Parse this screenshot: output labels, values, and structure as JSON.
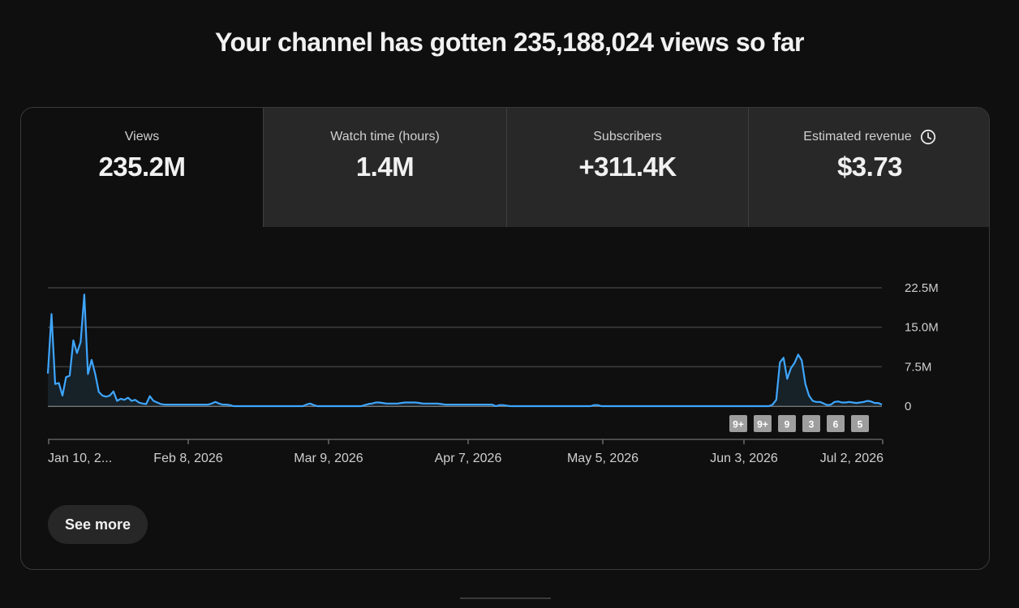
{
  "headline": "Your channel has gotten 235,188,024 views so far",
  "tabs": [
    {
      "label": "Views",
      "value": "235.2M"
    },
    {
      "label": "Watch time (hours)",
      "value": "1.4M"
    },
    {
      "label": "Subscribers",
      "value": "+311.4K"
    },
    {
      "label": "Estimated revenue",
      "value": "$3.73",
      "icon": "clock-icon"
    }
  ],
  "see_more_label": "See more",
  "colors": {
    "line": "#3ea6ff",
    "background": "#0f0f0f",
    "tab_inactive": "#282828",
    "grid": "#3f3f3f"
  },
  "chart_data": {
    "type": "line",
    "series": [
      {
        "values": [
          6.2,
          17.5,
          4.2,
          4.4,
          2,
          5.5,
          5.8,
          12.5,
          10.1,
          12.2,
          21.2,
          6.1,
          8.8,
          6.1,
          2.7,
          2,
          1.8,
          2,
          2.8,
          1,
          1.4,
          1.2,
          1.6,
          1,
          1.2,
          0.7,
          0.5,
          0.4,
          1.9,
          1,
          0.7,
          0.4,
          0.3,
          0.3,
          0.3,
          0.3,
          0.3,
          0.3,
          0.3,
          0.3,
          0.3,
          0.3,
          0.3,
          0.3,
          0.3,
          0.5,
          0.8,
          0.5,
          0.3,
          0.3,
          0.2,
          0,
          0,
          0,
          0,
          0,
          0,
          0,
          0,
          0,
          0,
          0,
          0,
          0,
          0,
          0,
          0,
          0,
          0,
          0,
          0,
          0.3,
          0.5,
          0.2,
          0,
          0,
          0,
          0,
          0,
          0,
          0,
          0,
          0,
          0,
          0,
          0,
          0,
          0.2,
          0.4,
          0.5,
          0.7,
          0.7,
          0.6,
          0.5,
          0.5,
          0.5,
          0.5,
          0.6,
          0.7,
          0.7,
          0.7,
          0.7,
          0.6,
          0.5,
          0.5,
          0.5,
          0.5,
          0.5,
          0.4,
          0.3,
          0.3,
          0.3,
          0.3,
          0.3,
          0.3,
          0.3,
          0.3,
          0.3,
          0.3,
          0.3,
          0.3,
          0.3,
          0.3,
          0,
          0.2,
          0.2,
          0.1,
          0,
          0,
          0,
          0,
          0,
          0,
          0,
          0,
          0,
          0,
          0,
          0,
          0,
          0,
          0,
          0,
          0,
          0,
          0,
          0,
          0,
          0,
          0,
          0.2,
          0.2,
          0,
          0,
          0,
          0,
          0,
          0,
          0,
          0,
          0,
          0,
          0,
          0,
          0,
          0,
          0,
          0,
          0,
          0,
          0,
          0,
          0,
          0,
          0,
          0,
          0,
          0,
          0,
          0,
          0,
          0,
          0,
          0,
          0,
          0,
          0,
          0,
          0,
          0,
          0,
          0,
          0,
          0,
          0,
          0,
          0,
          0,
          0,
          0.3,
          1.2,
          8.3,
          9.2,
          5.2,
          7.2,
          8.2,
          9.8,
          8.7,
          4.2,
          2,
          1,
          0.8,
          0.8,
          0.5,
          0.2,
          0.3,
          0.8,
          0.9,
          0.7,
          0.7,
          0.8,
          0.7,
          0.6,
          0.7,
          0.8,
          1,
          0.9,
          0.6,
          0.6,
          0.3
        ]
      }
    ],
    "x_ticks": [
      "Jan 10, 2...",
      "Feb 8, 2026",
      "Mar 9, 2026",
      "Apr 7, 2026",
      "May 5, 2026",
      "Jun 3, 2026",
      "Jul 2, 2026"
    ],
    "y_ticks": [
      "22.5M",
      "15.0M",
      "7.5M",
      "0"
    ],
    "ylim": [
      0,
      22.5
    ],
    "markers": [
      "9+",
      "9+",
      "9",
      "3",
      "6",
      "5"
    ],
    "grid": true
  }
}
